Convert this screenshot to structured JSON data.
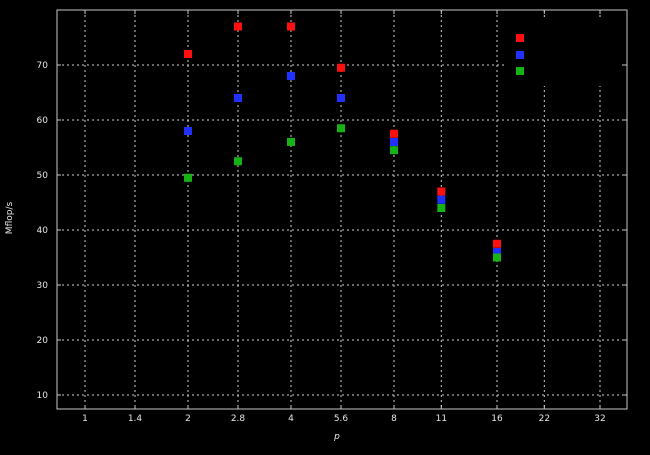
{
  "chart_data": {
    "type": "scatter",
    "title": "",
    "xlabel": "p",
    "ylabel": "Mflop/s",
    "x_scale": "log2",
    "grid": true,
    "background": "#000000",
    "grid_color": "#cfcfcf",
    "border_color": "#c8c8c8",
    "text_color": "#e6e6e6",
    "marker": "square",
    "marker_size": 8,
    "x_ticks": [
      1,
      1.4,
      2,
      2.8,
      4,
      5.6,
      8,
      11,
      16,
      22,
      32
    ],
    "x_tick_labels": [
      "1",
      "1.4",
      "2",
      "2.8",
      "4",
      "5.6",
      "8",
      "11",
      "16",
      "22",
      "32"
    ],
    "y_ticks": [
      10,
      20,
      30,
      40,
      50,
      60,
      70
    ],
    "y_tick_labels": [
      "10",
      "20",
      "30",
      "40",
      "50",
      "60",
      "70"
    ],
    "xlim": [
      0.83,
      38
    ],
    "ylim": [
      7.5,
      80
    ],
    "x": [
      2,
      2.8,
      4,
      5.6,
      8,
      11,
      16
    ],
    "series": [
      {
        "name": "series-red",
        "color": "#ff1010",
        "values": [
          72,
          77,
          77,
          69.5,
          57.5,
          47,
          37.5
        ]
      },
      {
        "name": "series-blue",
        "color": "#2030ff",
        "values": [
          58,
          64,
          68,
          64,
          56,
          45.5,
          36
        ]
      },
      {
        "name": "series-green",
        "color": "#15b315",
        "values": [
          49.5,
          52.5,
          56,
          58.5,
          54.5,
          44,
          35
        ]
      }
    ],
    "legend": {
      "position": "top-right",
      "items": [
        {
          "label": "",
          "color": "#ff1010"
        },
        {
          "label": "",
          "color": "#2030ff"
        },
        {
          "label": "",
          "color": "#15b315"
        }
      ]
    }
  }
}
